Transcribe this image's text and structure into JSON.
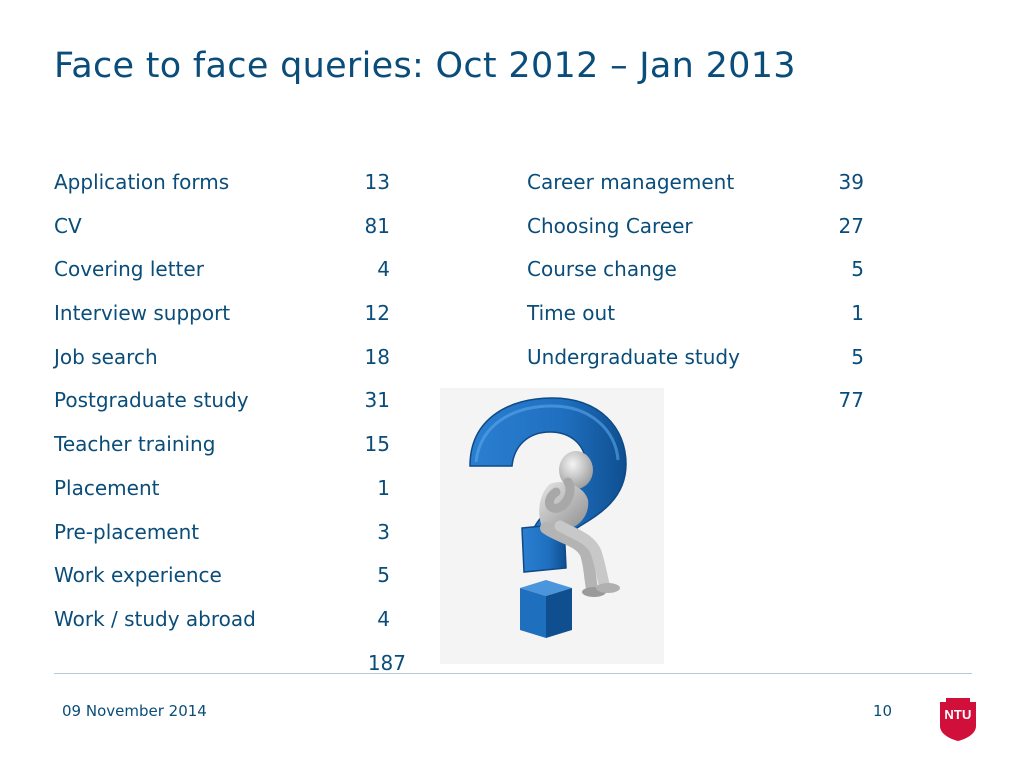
{
  "title": "Face to face queries: Oct 2012 – Jan 2013",
  "left_table": {
    "rows": [
      {
        "label": "Application forms",
        "value": "13"
      },
      {
        "label": "CV",
        "value": "81"
      },
      {
        "label": "Covering letter",
        "value": "4"
      },
      {
        "label": "Interview support",
        "value": "12"
      },
      {
        "label": "Job search",
        "value": "18"
      },
      {
        "label": "Postgraduate study",
        "value": "31"
      },
      {
        "label": "Teacher training",
        "value": "15"
      },
      {
        "label": "Placement",
        "value": "1"
      },
      {
        "label": "Pre-placement",
        "value": "3"
      },
      {
        "label": "Work experience",
        "value": "5"
      },
      {
        "label": "Work / study abroad",
        "value": "4"
      }
    ],
    "total": "187"
  },
  "right_table": {
    "rows": [
      {
        "label": "Career management",
        "value": "39"
      },
      {
        "label": "Choosing Career",
        "value": "27"
      },
      {
        "label": "Course change",
        "value": "5"
      },
      {
        "label": "Time out",
        "value": "1"
      },
      {
        "label": "Undergraduate study",
        "value": "5"
      }
    ],
    "total": "77"
  },
  "image": {
    "icon": "thinking-person-question-mark-icon"
  },
  "footer": {
    "date": "09 November 2014",
    "page_number": "10",
    "logo_text": "NTU"
  },
  "colors": {
    "text": "#0a4d7a",
    "question_mark": "#1f6fbf",
    "logo": "#d0103a"
  }
}
